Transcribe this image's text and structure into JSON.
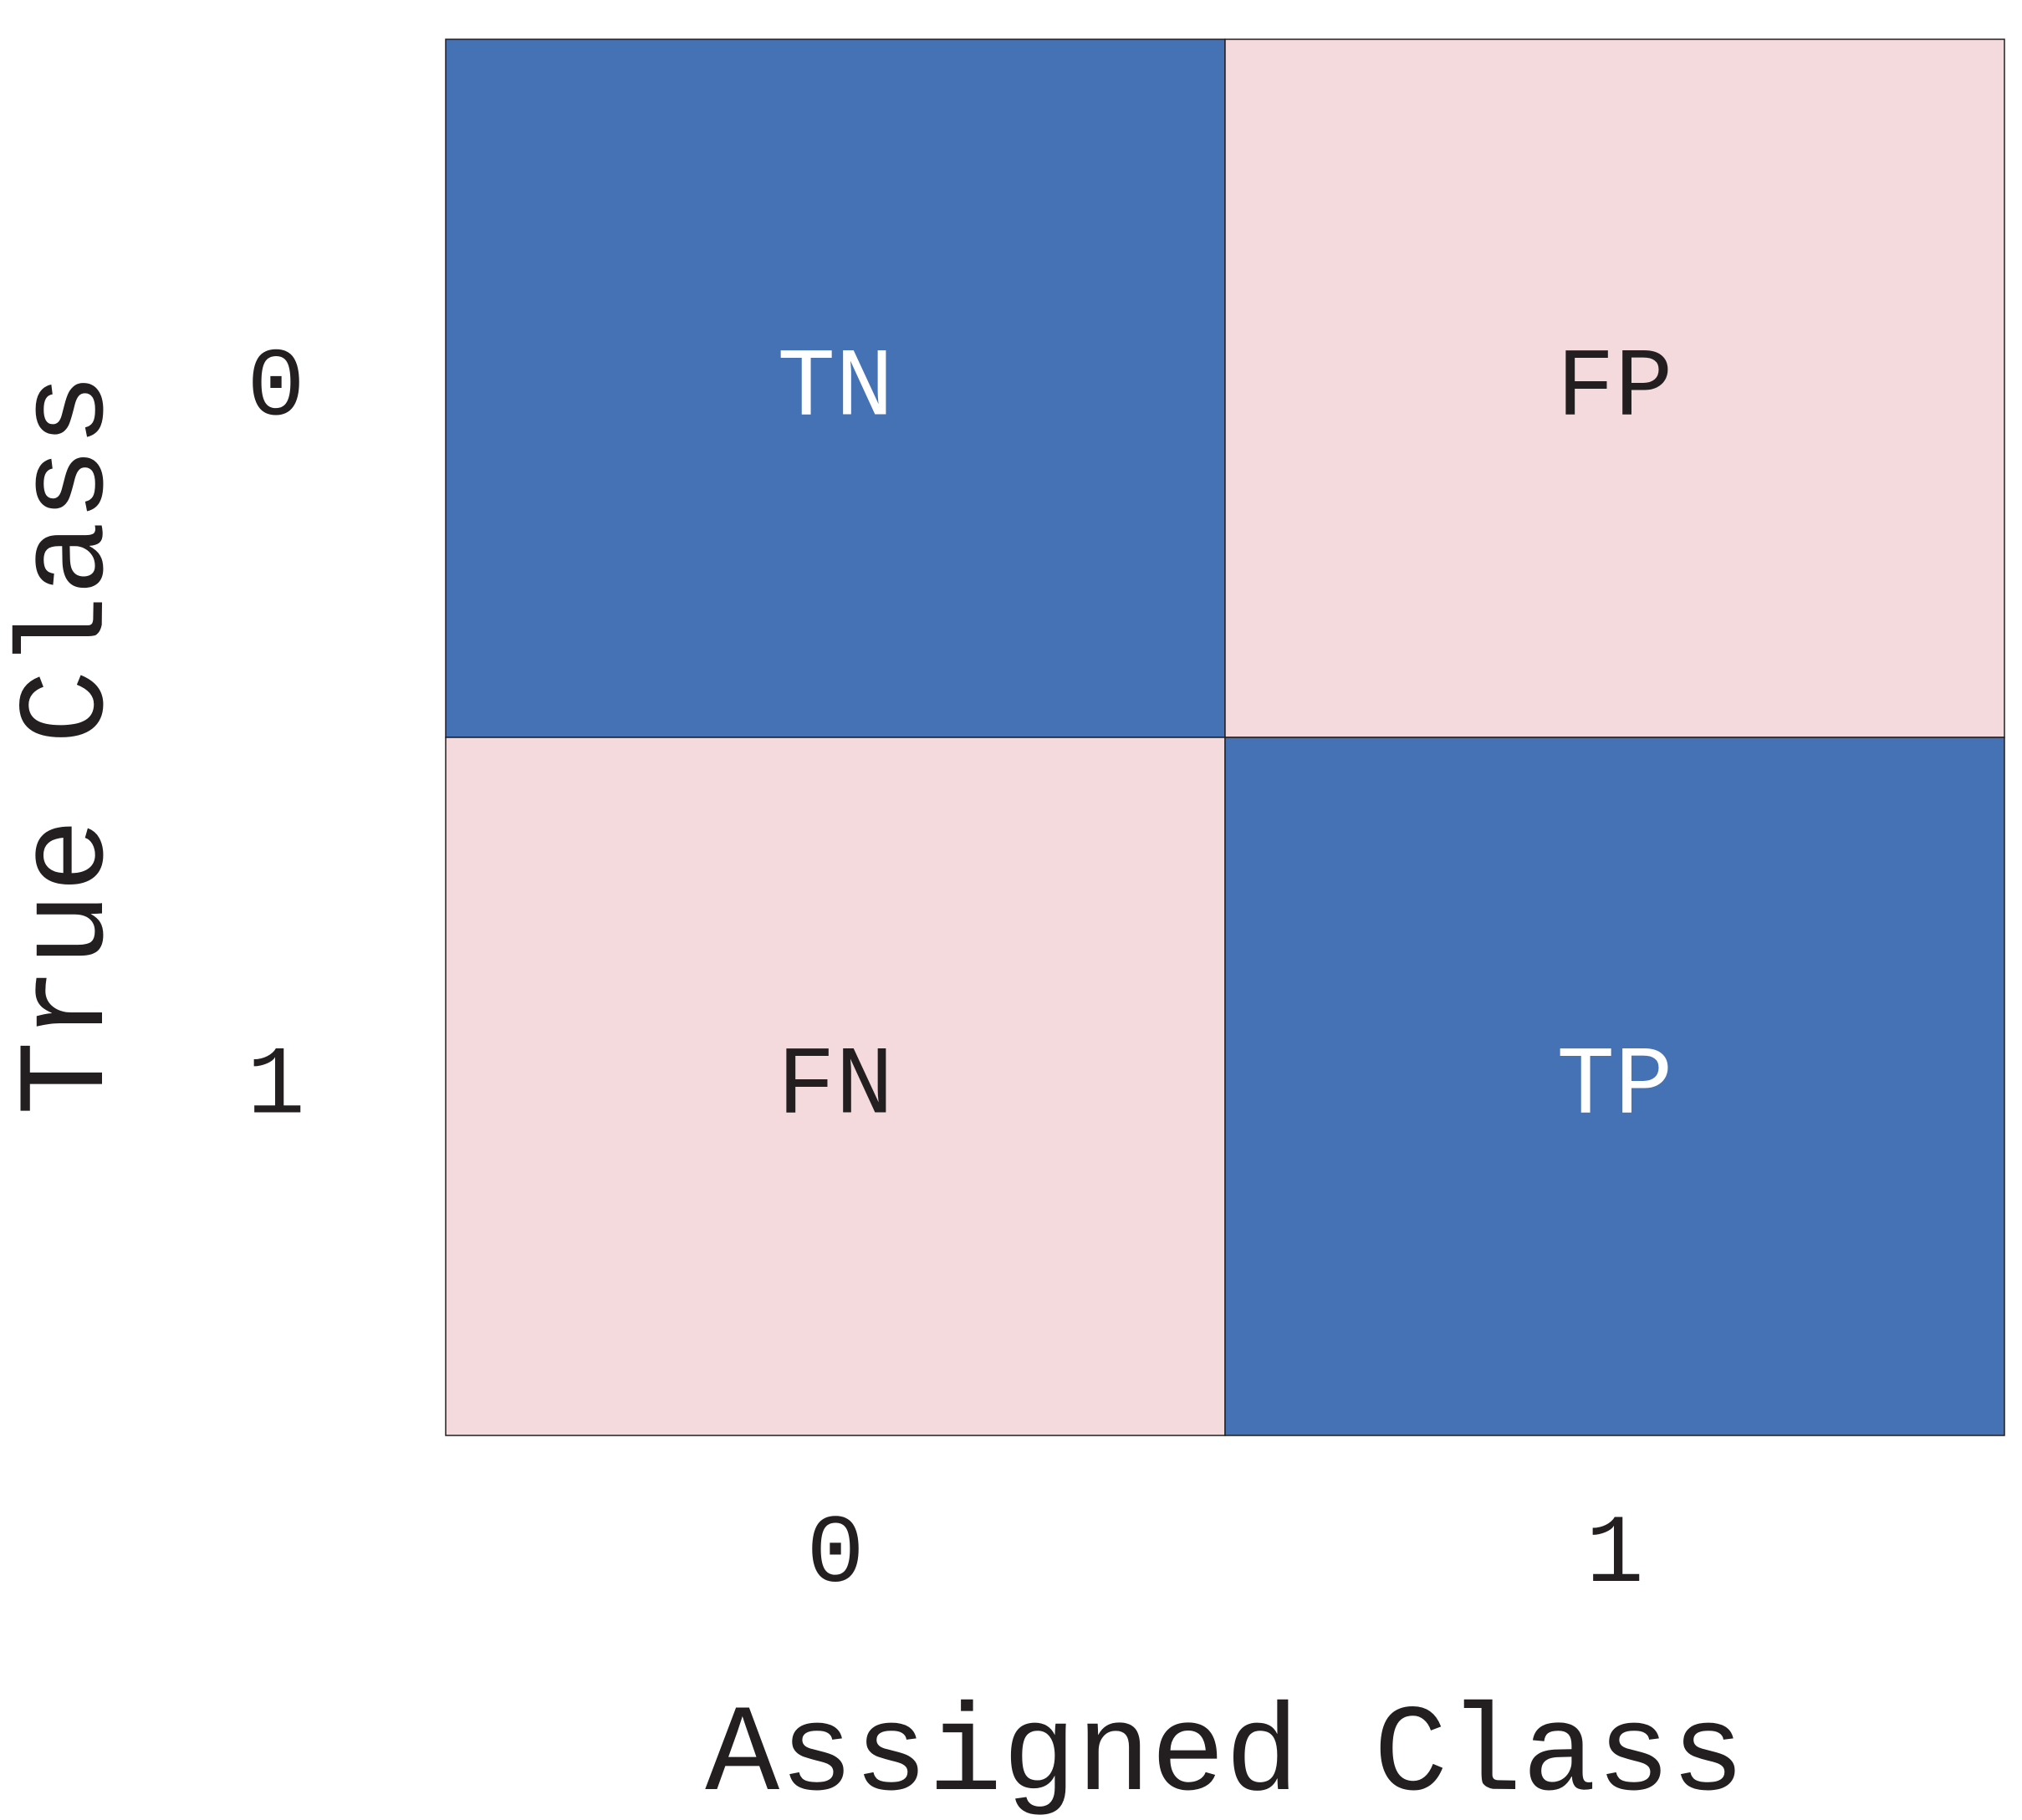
{
  "chart_data": {
    "type": "heatmap",
    "title": "",
    "xlabel": "Assigned Class",
    "ylabel": "True Class",
    "x_categories": [
      "0",
      "1"
    ],
    "y_categories": [
      "0",
      "1"
    ],
    "cells": [
      {
        "row": 0,
        "col": 0,
        "label": "TN",
        "fill": "#4472b4",
        "text_color": "#ffffff"
      },
      {
        "row": 0,
        "col": 1,
        "label": "FP",
        "fill": "#f4dadc",
        "text_color": "#231f20"
      },
      {
        "row": 1,
        "col": 0,
        "label": "FN",
        "fill": "#f4dadc",
        "text_color": "#231f20"
      },
      {
        "row": 1,
        "col": 1,
        "label": "TP",
        "fill": "#4472b4",
        "text_color": "#ffffff"
      }
    ],
    "colors": {
      "correct": "#4472b4",
      "incorrect": "#f4dadc",
      "text": "#231f20",
      "border": "#231f20"
    },
    "grid": true,
    "legend": "none"
  }
}
